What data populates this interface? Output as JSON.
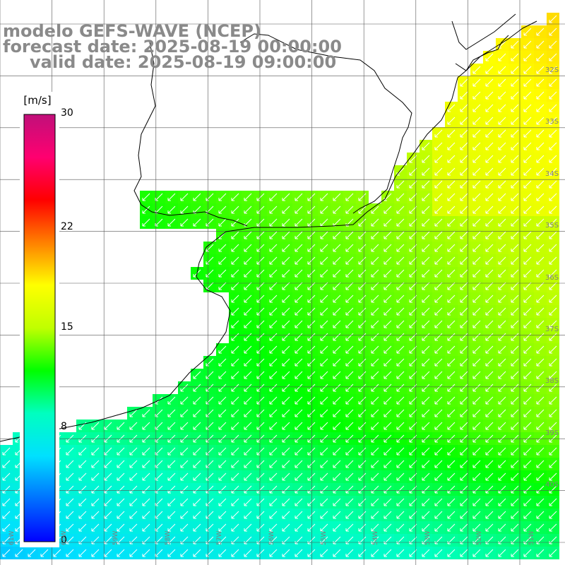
{
  "titles": {
    "model": "modelo GEFS-WAVE (NCEP)",
    "forecast": "forecast date: 2025-08-19 00:00:00",
    "valid": "valid date: 2025-08-19 09:00:00"
  },
  "colorbar": {
    "units": "[m/s]",
    "ticks": [
      "30",
      "22",
      "15",
      "8",
      "0"
    ],
    "tick_values": [
      30,
      22,
      15,
      8,
      0
    ],
    "colors": [
      "#0000ff",
      "#0070ff",
      "#00e0ff",
      "#00ffc0",
      "#00ff00",
      "#c0ff00",
      "#ffff00",
      "#ff8000",
      "#ff0000",
      "#ff0070",
      "#c0107a"
    ]
  },
  "grid": {
    "lat_labels": [
      "32S",
      "33S",
      "34S",
      "35S",
      "36S",
      "37S",
      "38S",
      "39S",
      "40S"
    ],
    "lon_labels": [
      "61W",
      "60W",
      "59W",
      "58W",
      "57W",
      "56W",
      "55W",
      "54W",
      "53W",
      "52W",
      "51W"
    ]
  },
  "map": {
    "variable": "wind speed",
    "land_color": "#ffffff",
    "coast_color": "#000000",
    "arrow_color": "#ffffff",
    "wind_direction": "from north-east"
  }
}
